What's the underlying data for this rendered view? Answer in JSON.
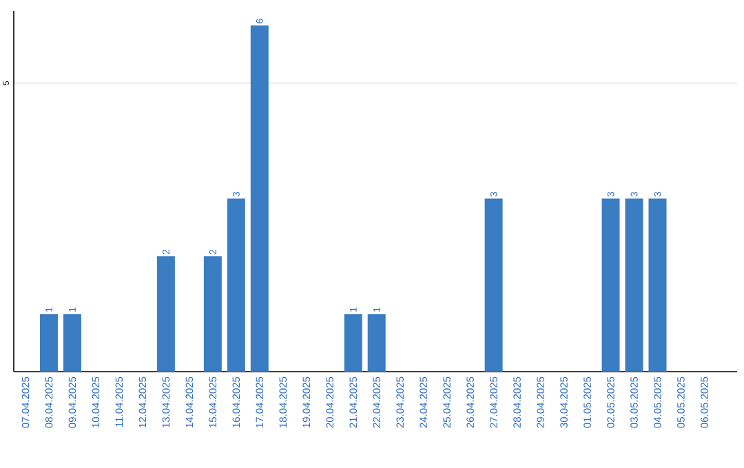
{
  "chart_data": {
    "type": "bar",
    "categories": [
      "07.04.2025",
      "08.04.2025",
      "09.04.2025",
      "10.04.2025",
      "11.04.2025",
      "12.04.2025",
      "13.04.2025",
      "14.04.2025",
      "15.04.2025",
      "16.04.2025",
      "17.04.2025",
      "18.04.2025",
      "19.04.2025",
      "20.04.2025",
      "21.04.2025",
      "22.04.2025",
      "23.04.2025",
      "24.04.2025",
      "25.04.2025",
      "26.04.2025",
      "27.04.2025",
      "28.04.2025",
      "29.04.2025",
      "30.04.2025",
      "01.05.2025",
      "02.05.2025",
      "03.05.2025",
      "04.05.2025",
      "05.05.2025",
      "06.05.2025"
    ],
    "values": [
      0,
      1,
      1,
      0,
      0,
      0,
      2,
      0,
      2,
      3,
      6,
      0,
      0,
      0,
      1,
      1,
      0,
      0,
      0,
      0,
      3,
      0,
      0,
      0,
      0,
      3,
      3,
      3,
      0,
      0
    ],
    "value_labels": [
      null,
      "1",
      "1",
      null,
      null,
      null,
      "2",
      null,
      "2",
      "3",
      "6",
      null,
      null,
      null,
      "1",
      "1",
      null,
      null,
      null,
      null,
      "3",
      null,
      null,
      null,
      null,
      "3",
      "3",
      "3",
      null,
      null
    ],
    "color": "#3b7dc2",
    "ylim": [
      0,
      6.25
    ],
    "yticks": [
      5
    ],
    "grid": "y"
  }
}
